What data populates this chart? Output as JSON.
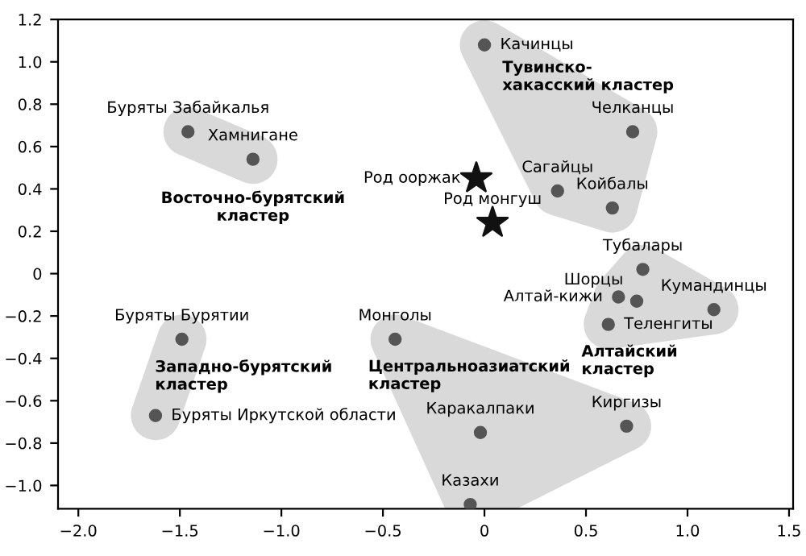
{
  "chart_data": {
    "type": "scatter",
    "marker": "circle",
    "grid": false,
    "legend": false,
    "xlim": [
      -2.1,
      1.52
    ],
    "ylim": [
      -1.11,
      1.2
    ],
    "xticks": [
      {
        "value": -2.0,
        "label": "−2.0"
      },
      {
        "value": -1.5,
        "label": "−1.5"
      },
      {
        "value": -1.0,
        "label": "−1.0"
      },
      {
        "value": -0.5,
        "label": "−0.5"
      },
      0,
      0.5,
      {
        "value": 1,
        "label": "1.0"
      },
      1.5
    ],
    "yticks": [
      {
        "value": -1.0,
        "label": "−1.0"
      },
      {
        "value": -0.8,
        "label": "−0.8"
      },
      {
        "value": -0.6,
        "label": "−0.6"
      },
      {
        "value": -0.4,
        "label": "−0.4"
      },
      {
        "value": -0.2,
        "label": "−0.2"
      },
      0,
      0.2,
      0.4,
      0.6,
      0.8,
      {
        "value": 1,
        "label": "1.0"
      },
      1.2
    ],
    "series": [
      {
        "name": "Восточно-бурятский\nкластер",
        "color": "#555555",
        "x": [
          -1.46,
          -1.14
        ],
        "values": [
          0.67,
          0.54
        ]
      },
      {
        "name": "Тувинско-\nхакасский кластер",
        "color": "#555555",
        "x": [
          0.0,
          0.73,
          0.36,
          0.63
        ],
        "values": [
          1.08,
          0.67,
          0.39,
          0.31
        ]
      },
      {
        "name": "Алтайский\nкластер",
        "color": "#555555",
        "x": [
          0.78,
          0.66,
          0.75,
          1.13,
          0.61
        ],
        "values": [
          0.02,
          -0.11,
          -0.13,
          -0.17,
          -0.24
        ]
      },
      {
        "name": "Западно-бурятский\nкластер",
        "color": "#555555",
        "x": [
          -1.49,
          -1.62
        ],
        "values": [
          -0.31,
          -0.67
        ]
      },
      {
        "name": "Центральноазиатский\nкластер",
        "color": "#555555",
        "x": [
          -0.44,
          -0.02,
          0.7,
          -0.07
        ],
        "values": [
          -0.31,
          -0.75,
          -0.72,
          -1.09
        ]
      },
      {
        "color": "#111111",
        "marker": "star",
        "x": [
          -0.04,
          0.04
        ],
        "values": [
          0.45,
          0.24
        ]
      }
    ],
    "annotations": [
      {
        "text": "Буряты Забайкалья",
        "x": -1.46,
        "y": 0.67
      },
      {
        "text": "Хамнигане",
        "x": -1.14,
        "y": 0.54
      },
      {
        "text": "Качинцы",
        "x": 0.0,
        "y": 1.08
      },
      {
        "text": "Челканцы",
        "x": 0.73,
        "y": 0.67
      },
      {
        "text": "Сагайцы",
        "x": 0.36,
        "y": 0.39
      },
      {
        "text": "Койбалы",
        "x": 0.63,
        "y": 0.31
      },
      {
        "text": "Тубалары",
        "x": 0.78,
        "y": 0.02
      },
      {
        "text": "Алтай-кижи",
        "x": 0.66,
        "y": -0.11
      },
      {
        "text": "Шорцы",
        "x": 0.75,
        "y": -0.13
      },
      {
        "text": "Кумандинцы",
        "x": 1.13,
        "y": -0.17
      },
      {
        "text": "Теленгиты",
        "x": 0.61,
        "y": -0.24
      },
      {
        "text": "Буряты Бурятии",
        "x": -1.49,
        "y": -0.31
      },
      {
        "text": "Буряты Иркутской области",
        "x": -1.62,
        "y": -0.67
      },
      {
        "text": "Монголы",
        "x": -0.44,
        "y": -0.31
      },
      {
        "text": "Каракалпаки",
        "x": -0.02,
        "y": -0.75
      },
      {
        "text": "Киргизы",
        "x": 0.7,
        "y": -0.72
      },
      {
        "text": "Казахи",
        "x": -0.07,
        "y": -1.09
      },
      {
        "text": "Род ооржак",
        "x": -0.04,
        "y": 0.45
      },
      {
        "text": "Род монгуш",
        "x": 0.04,
        "y": 0.24
      }
    ]
  }
}
